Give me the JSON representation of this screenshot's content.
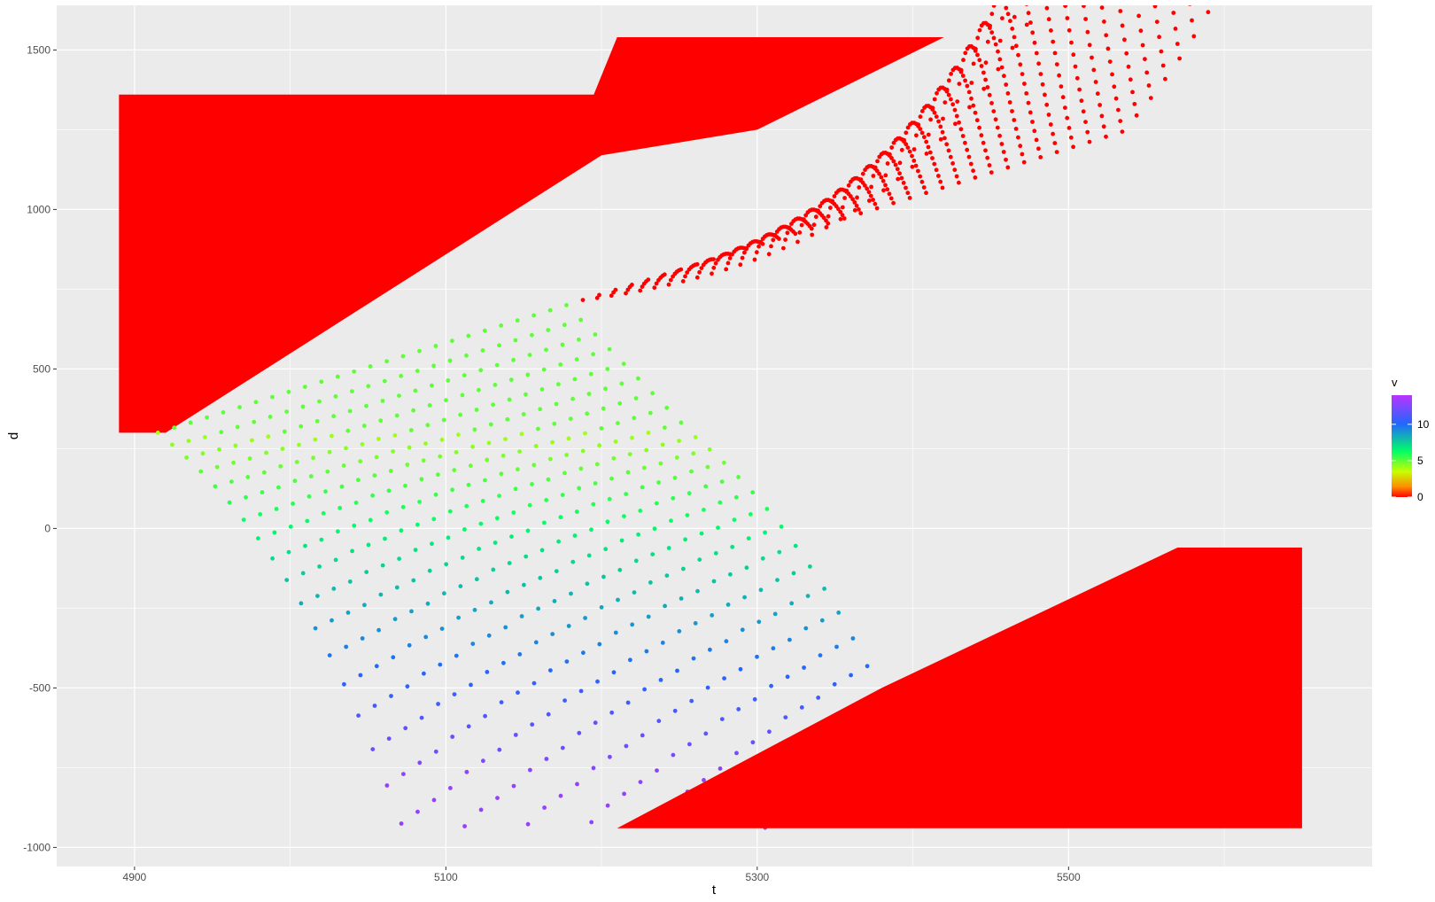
{
  "chart_data": {
    "type": "scatter",
    "title": "",
    "xlabel": "t",
    "ylabel": "d",
    "xlim": [
      4850,
      5695
    ],
    "ylim": [
      -1060,
      1640
    ],
    "x_ticks": [
      4900,
      5100,
      5300,
      5500
    ],
    "x_tick_labels": [
      "4900",
      "5100",
      "5300",
      "5500"
    ],
    "y_ticks": [
      -1000,
      -500,
      0,
      500,
      1000,
      1500
    ],
    "y_tick_labels": [
      "-1000",
      "-500",
      "0",
      "500",
      "1000",
      "1500"
    ],
    "grid": true,
    "panel_background": "#ebebeb",
    "grid_color": "#ffffff",
    "legend": {
      "title": "v",
      "placement": "right",
      "range": [
        0,
        14
      ],
      "breaks": [
        0,
        5,
        10
      ],
      "break_labels": [
        "0",
        "5",
        "10"
      ],
      "colors": [
        "#ff0000",
        "#ff8c00",
        "#c8ff00",
        "#00ff66",
        "#2266ff",
        "#bb33ff"
      ]
    },
    "series": [
      {
        "description_of_data": "vehicle trajectories",
        "queue_upstream": {
          "t_start": 4890,
          "t_end": 5420,
          "d_low": 300,
          "d_high": 1360,
          "d_top_after": 1540,
          "v": 0
        },
        "queue_downstream": {
          "t_start": 5210,
          "t_end": 5650,
          "d_low": -940,
          "d_high": -60,
          "v": 0
        },
        "trajectory_start_times": [
          4915,
          5215,
          5625
        ],
        "trajectory_spacing_t": 10,
        "free_flow_speed": 13,
        "d_range": [
          -940,
          1540
        ]
      }
    ]
  }
}
